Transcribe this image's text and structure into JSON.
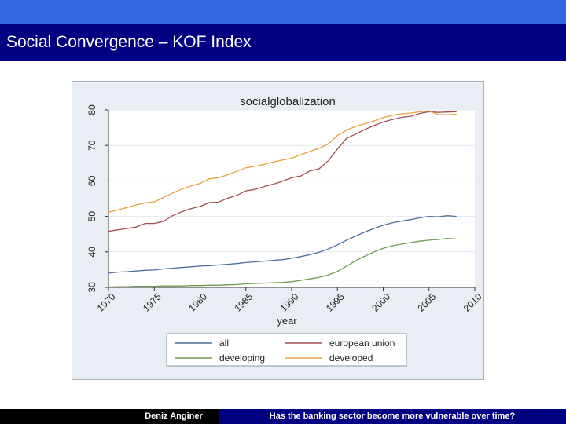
{
  "slide": {
    "title": "Social Convergence – KOF Index",
    "footer_left": "Deniz Anginer",
    "footer_right": "Has the banking sector become more vulnerable over time?"
  },
  "colors": {
    "top_band": "#3366dd",
    "title_bar": "#000080",
    "footer_right": "#000080"
  },
  "chart_data": {
    "type": "line",
    "title": "socialglobalization",
    "xlabel": "year",
    "ylabel": "",
    "xlim": [
      1970,
      2010
    ],
    "ylim": [
      30,
      80
    ],
    "x_ticks": [
      1970,
      1975,
      1980,
      1985,
      1990,
      1995,
      2000,
      2005,
      2010
    ],
    "y_ticks": [
      30,
      40,
      50,
      60,
      70,
      80
    ],
    "grid": true,
    "legend_position": "bottom",
    "x": [
      1970,
      1971,
      1972,
      1973,
      1974,
      1975,
      1976,
      1977,
      1978,
      1979,
      1980,
      1981,
      1982,
      1983,
      1984,
      1985,
      1986,
      1987,
      1988,
      1989,
      1990,
      1991,
      1992,
      1993,
      1994,
      1995,
      1996,
      1997,
      1998,
      1999,
      2000,
      2001,
      2002,
      2003,
      2004,
      2005,
      2006,
      2007,
      2008
    ],
    "series": [
      {
        "name": "all",
        "color": "#4a6f9a",
        "values": [
          34.0,
          34.3,
          34.4,
          34.6,
          34.8,
          34.9,
          35.2,
          35.4,
          35.6,
          35.8,
          36.0,
          36.1,
          36.3,
          36.5,
          36.7,
          37.0,
          37.2,
          37.4,
          37.6,
          37.8,
          38.2,
          38.7,
          39.2,
          39.9,
          40.8,
          42.0,
          43.3,
          44.5,
          45.6,
          46.6,
          47.5,
          48.2,
          48.7,
          49.1,
          49.6,
          50.0,
          49.9,
          50.2,
          50.0
        ]
      },
      {
        "name": "european union",
        "color": "#a05050",
        "values": [
          45.8,
          46.2,
          46.6,
          47.0,
          48.0,
          48.0,
          48.6,
          50.2,
          51.3,
          52.2,
          52.8,
          53.9,
          54.0,
          55.1,
          55.9,
          57.2,
          57.6,
          58.4,
          59.1,
          59.9,
          60.9,
          61.4,
          62.8,
          63.4,
          65.7,
          69.0,
          72.0,
          73.2,
          74.5,
          75.6,
          76.6,
          77.3,
          77.9,
          78.2,
          79.0,
          79.5,
          79.3,
          79.4,
          79.5
        ]
      },
      {
        "name": "developing",
        "color": "#6f9a4f",
        "values": [
          30.1,
          30.2,
          30.2,
          30.3,
          30.3,
          30.3,
          30.4,
          30.4,
          30.4,
          30.5,
          30.5,
          30.6,
          30.6,
          30.7,
          30.8,
          31.0,
          31.1,
          31.2,
          31.3,
          31.4,
          31.6,
          32.0,
          32.4,
          32.8,
          33.5,
          34.5,
          36.0,
          37.5,
          38.8,
          40.0,
          41.0,
          41.7,
          42.2,
          42.6,
          43.0,
          43.3,
          43.5,
          43.8,
          43.6
        ]
      },
      {
        "name": "developed",
        "color": "#e8a040",
        "values": [
          51.2,
          51.8,
          52.5,
          53.2,
          53.8,
          54.1,
          55.3,
          56.6,
          57.7,
          58.6,
          59.3,
          60.6,
          60.9,
          61.7,
          62.7,
          63.7,
          64.1,
          64.7,
          65.3,
          65.9,
          66.4,
          67.4,
          68.3,
          69.2,
          70.4,
          72.8,
          74.3,
          75.4,
          76.1,
          76.9,
          77.8,
          78.5,
          78.9,
          79.1,
          79.5,
          79.7,
          78.7,
          78.6,
          78.8
        ]
      }
    ]
  }
}
